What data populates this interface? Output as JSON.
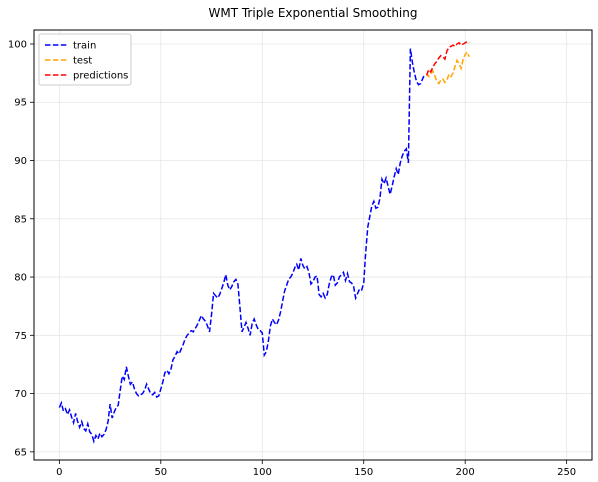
{
  "chart_data": {
    "type": "line",
    "title": "WMT Triple Exponential Smoothing",
    "xlabel": "",
    "ylabel": "",
    "xlim": [
      -12.5,
      262.5
    ],
    "ylim": [
      64.3,
      101.2
    ],
    "xticks": [
      0,
      50,
      100,
      150,
      200,
      250
    ],
    "yticks": [
      65,
      70,
      75,
      80,
      85,
      90,
      95,
      100
    ],
    "grid": true,
    "legend_position": "top-left",
    "series": [
      {
        "name": "train",
        "color": "#0000ff",
        "linestyle": "dashed",
        "points": [
          [
            0,
            68.8
          ],
          [
            1,
            69.2
          ],
          [
            2,
            68.5
          ],
          [
            3,
            68.7
          ],
          [
            4,
            68.2
          ],
          [
            5,
            68.6
          ],
          [
            6,
            68.0
          ],
          [
            7,
            67.5
          ],
          [
            8,
            68.3
          ],
          [
            9,
            67.6
          ],
          [
            10,
            67.1
          ],
          [
            11,
            67.6
          ],
          [
            12,
            67.0
          ],
          [
            13,
            66.8
          ],
          [
            14,
            67.4
          ],
          [
            15,
            66.7
          ],
          [
            16,
            66.5
          ],
          [
            17,
            65.9
          ],
          [
            18,
            66.4
          ],
          [
            19,
            66.1
          ],
          [
            20,
            66.6
          ],
          [
            21,
            66.3
          ],
          [
            22,
            66.5
          ],
          [
            23,
            66.9
          ],
          [
            24,
            67.6
          ],
          [
            25,
            69.1
          ],
          [
            26,
            67.9
          ],
          [
            27,
            68.4
          ],
          [
            28,
            68.8
          ],
          [
            29,
            69.0
          ],
          [
            30,
            70.3
          ],
          [
            31,
            71.5
          ],
          [
            32,
            71.2
          ],
          [
            33,
            72.3
          ],
          [
            34,
            71.5
          ],
          [
            35,
            70.8
          ],
          [
            36,
            71.0
          ],
          [
            37,
            70.4
          ],
          [
            38,
            70.0
          ],
          [
            39,
            69.8
          ],
          [
            40,
            69.9
          ],
          [
            41,
            70.0
          ],
          [
            42,
            70.3
          ],
          [
            43,
            70.8
          ],
          [
            44,
            70.4
          ],
          [
            45,
            70.0
          ],
          [
            46,
            69.9
          ],
          [
            47,
            70.1
          ],
          [
            48,
            69.7
          ],
          [
            49,
            69.8
          ],
          [
            50,
            70.4
          ],
          [
            51,
            71.0
          ],
          [
            52,
            71.8
          ],
          [
            53,
            72.0
          ],
          [
            54,
            71.7
          ],
          [
            55,
            72.1
          ],
          [
            56,
            72.9
          ],
          [
            57,
            73.2
          ],
          [
            58,
            73.6
          ],
          [
            59,
            73.4
          ],
          [
            60,
            73.8
          ],
          [
            61,
            74.2
          ],
          [
            62,
            74.7
          ],
          [
            63,
            75.0
          ],
          [
            64,
            75.2
          ],
          [
            65,
            75.4
          ],
          [
            66,
            75.3
          ],
          [
            67,
            75.6
          ],
          [
            68,
            75.9
          ],
          [
            69,
            76.3
          ],
          [
            70,
            76.7
          ],
          [
            71,
            76.4
          ],
          [
            72,
            76.2
          ],
          [
            73,
            75.8
          ],
          [
            74,
            75.3
          ],
          [
            75,
            76.8
          ],
          [
            76,
            78.6
          ],
          [
            77,
            78.4
          ],
          [
            78,
            78.2
          ],
          [
            79,
            78.5
          ],
          [
            80,
            79.0
          ],
          [
            81,
            79.5
          ],
          [
            82,
            80.2
          ],
          [
            83,
            79.3
          ],
          [
            84,
            78.9
          ],
          [
            85,
            79.2
          ],
          [
            86,
            79.6
          ],
          [
            87,
            79.8
          ],
          [
            88,
            79.4
          ],
          [
            89,
            77.4
          ],
          [
            90,
            75.3
          ],
          [
            91,
            75.7
          ],
          [
            92,
            76.1
          ],
          [
            93,
            75.6
          ],
          [
            94,
            75.0
          ],
          [
            95,
            76.0
          ],
          [
            96,
            76.4
          ],
          [
            97,
            75.9
          ],
          [
            98,
            75.5
          ],
          [
            99,
            75.4
          ],
          [
            100,
            75.2
          ],
          [
            101,
            73.3
          ],
          [
            102,
            73.6
          ],
          [
            103,
            74.5
          ],
          [
            104,
            75.8
          ],
          [
            105,
            76.4
          ],
          [
            106,
            76.1
          ],
          [
            107,
            75.9
          ],
          [
            108,
            76.3
          ],
          [
            109,
            77.0
          ],
          [
            110,
            77.9
          ],
          [
            111,
            78.8
          ],
          [
            112,
            79.3
          ],
          [
            113,
            79.8
          ],
          [
            114,
            80.0
          ],
          [
            115,
            80.3
          ],
          [
            116,
            80.8
          ],
          [
            117,
            81.1
          ],
          [
            118,
            80.6
          ],
          [
            119,
            81.6
          ],
          [
            120,
            81.0
          ],
          [
            121,
            80.7
          ],
          [
            122,
            80.9
          ],
          [
            123,
            80.4
          ],
          [
            124,
            79.4
          ],
          [
            125,
            79.6
          ],
          [
            126,
            80.0
          ],
          [
            127,
            80.1
          ],
          [
            128,
            78.5
          ],
          [
            129,
            78.3
          ],
          [
            130,
            78.6
          ],
          [
            131,
            78.2
          ],
          [
            132,
            78.5
          ],
          [
            133,
            79.4
          ],
          [
            134,
            80.0
          ],
          [
            135,
            80.2
          ],
          [
            136,
            79.3
          ],
          [
            137,
            79.5
          ],
          [
            138,
            80.0
          ],
          [
            139,
            80.2
          ],
          [
            140,
            80.4
          ],
          [
            141,
            79.7
          ],
          [
            142,
            80.3
          ],
          [
            143,
            79.6
          ],
          [
            144,
            79.5
          ],
          [
            145,
            79.2
          ],
          [
            146,
            78.2
          ],
          [
            147,
            78.6
          ],
          [
            148,
            79.0
          ],
          [
            149,
            78.9
          ],
          [
            150,
            79.5
          ],
          [
            151,
            82.2
          ],
          [
            152,
            84.3
          ],
          [
            153,
            85.2
          ],
          [
            154,
            86.1
          ],
          [
            155,
            86.5
          ],
          [
            156,
            85.9
          ],
          [
            157,
            86.0
          ],
          [
            158,
            86.8
          ],
          [
            159,
            88.4
          ],
          [
            160,
            88.0
          ],
          [
            161,
            88.5
          ],
          [
            162,
            87.8
          ],
          [
            163,
            87.1
          ],
          [
            164,
            87.8
          ],
          [
            165,
            88.6
          ],
          [
            166,
            89.3
          ],
          [
            167,
            88.8
          ],
          [
            168,
            89.8
          ],
          [
            169,
            90.4
          ],
          [
            170,
            90.8
          ],
          [
            171,
            91.0
          ],
          [
            172,
            89.8
          ],
          [
            173,
            99.6
          ],
          [
            174,
            98.4
          ],
          [
            175,
            97.5
          ],
          [
            176,
            96.8
          ],
          [
            177,
            96.5
          ],
          [
            178,
            96.6
          ],
          [
            179,
            97.0
          ],
          [
            180,
            97.4
          ]
        ]
      },
      {
        "name": "test",
        "color": "#ffa500",
        "linestyle": "dashed",
        "points": [
          [
            181,
            97.5
          ],
          [
            182,
            97.2
          ],
          [
            183,
            97.4
          ],
          [
            184,
            97.7
          ],
          [
            185,
            97.3
          ],
          [
            186,
            96.8
          ],
          [
            187,
            96.6
          ],
          [
            188,
            96.9
          ],
          [
            189,
            97.0
          ],
          [
            190,
            96.7
          ],
          [
            191,
            96.9
          ],
          [
            192,
            97.4
          ],
          [
            193,
            97.2
          ],
          [
            194,
            97.5
          ],
          [
            195,
            98.1
          ],
          [
            196,
            98.6
          ],
          [
            197,
            98.3
          ],
          [
            198,
            97.9
          ],
          [
            199,
            98.7
          ],
          [
            200,
            99.1
          ],
          [
            201,
            99.3
          ],
          [
            202,
            98.9
          ]
        ]
      },
      {
        "name": "predictions",
        "color": "#ff0000",
        "linestyle": "dashed",
        "points": [
          [
            181,
            97.3
          ],
          [
            182,
            97.8
          ],
          [
            183,
            97.6
          ],
          [
            184,
            98.0
          ],
          [
            185,
            98.3
          ],
          [
            186,
            98.5
          ],
          [
            187,
            98.8
          ],
          [
            188,
            99.0
          ],
          [
            189,
            98.9
          ],
          [
            190,
            98.7
          ],
          [
            191,
            99.4
          ],
          [
            192,
            99.7
          ],
          [
            193,
            99.8
          ],
          [
            194,
            99.9
          ],
          [
            195,
            99.8
          ],
          [
            196,
            100.0
          ],
          [
            197,
            100.1
          ],
          [
            198,
            99.9
          ],
          [
            199,
            100.0
          ],
          [
            200,
            100.1
          ],
          [
            201,
            100.2
          ],
          [
            202,
            100.1
          ]
        ]
      }
    ]
  }
}
